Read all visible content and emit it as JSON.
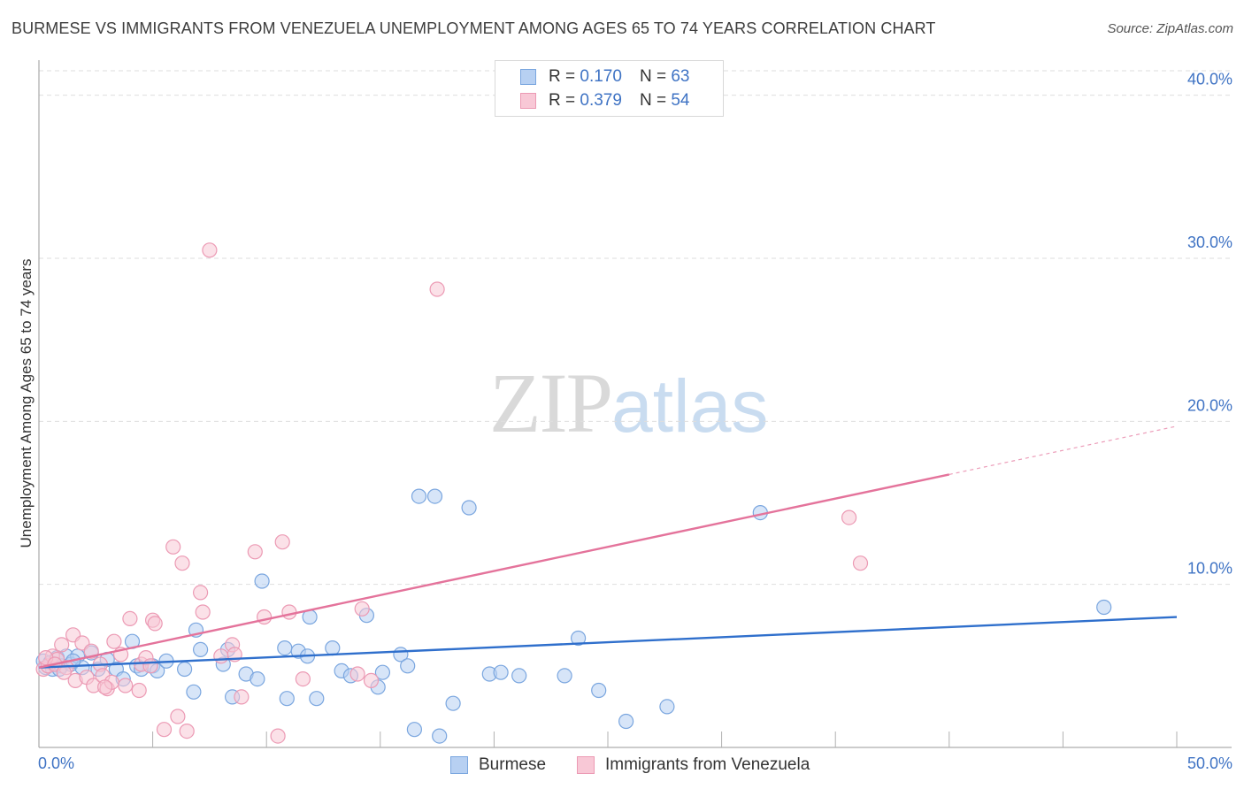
{
  "title": "BURMESE VS IMMIGRANTS FROM VENEZUELA UNEMPLOYMENT AMONG AGES 65 TO 74 YEARS CORRELATION CHART",
  "source": "Source: ZipAtlas.com",
  "watermark": {
    "zip": "ZIP",
    "atlas": "atlas"
  },
  "colors": {
    "blue_fill": "#b7d0f2",
    "blue_stroke": "#7aa6df",
    "blue_line": "#2f6fcc",
    "pink_fill": "#f8c8d6",
    "pink_stroke": "#ec9ab4",
    "pink_line": "#e4739b",
    "tick_label": "#3f73c4",
    "grid": "#dedede"
  },
  "legend": {
    "rows": [
      {
        "r_label": "R =",
        "r_value": "0.170",
        "n_label": "N =",
        "n_value": "63"
      },
      {
        "r_label": "R =",
        "r_value": "0.379",
        "n_label": "N =",
        "n_value": "54"
      }
    ]
  },
  "bottom_legend": {
    "burmese": "Burmese",
    "venezuela": "Immigrants from Venezuela"
  },
  "chart_data": {
    "type": "scatter",
    "title": "BURMESE VS IMMIGRANTS FROM VENEZUELA UNEMPLOYMENT AMONG AGES 65 TO 74 YEARS CORRELATION CHART",
    "xlabel": "",
    "ylabel": "Unemployment Among Ages 65 to 74 years",
    "xlim": [
      0,
      50
    ],
    "ylim": [
      0,
      41.5
    ],
    "x_tick_labels": [
      "0.0%",
      "50.0%"
    ],
    "y_ticks": [
      10,
      20,
      30,
      40
    ],
    "y_tick_labels": [
      "10.0%",
      "20.0%",
      "30.0%",
      "40.0%"
    ],
    "grid": true,
    "series": [
      {
        "name": "Burmese",
        "R": 0.17,
        "N": 63,
        "trend": {
          "x": [
            0,
            50
          ],
          "y": [
            4.9,
            8.0
          ],
          "dashed_from": null
        },
        "points": [
          [
            0.2,
            5.3
          ],
          [
            0.3,
            4.9
          ],
          [
            0.5,
            5.2
          ],
          [
            0.6,
            4.8
          ],
          [
            0.8,
            5.5
          ],
          [
            1.0,
            5.0
          ],
          [
            1.2,
            5.6
          ],
          [
            1.4,
            5.1
          ],
          [
            1.7,
            5.6
          ],
          [
            1.9,
            4.9
          ],
          [
            2.3,
            5.8
          ],
          [
            2.6,
            4.8
          ],
          [
            3.0,
            5.4
          ],
          [
            3.4,
            4.8
          ],
          [
            3.7,
            4.2
          ],
          [
            4.1,
            6.5
          ],
          [
            4.3,
            5.0
          ],
          [
            4.5,
            4.8
          ],
          [
            5.0,
            5.0
          ],
          [
            5.2,
            4.7
          ],
          [
            5.6,
            5.3
          ],
          [
            6.4,
            4.8
          ],
          [
            6.8,
            3.4
          ],
          [
            6.9,
            7.2
          ],
          [
            7.1,
            6.0
          ],
          [
            8.1,
            5.1
          ],
          [
            8.3,
            6.0
          ],
          [
            8.5,
            3.1
          ],
          [
            9.1,
            4.5
          ],
          [
            9.6,
            4.2
          ],
          [
            9.8,
            10.2
          ],
          [
            10.8,
            6.1
          ],
          [
            10.9,
            3.0
          ],
          [
            11.4,
            5.9
          ],
          [
            11.8,
            5.6
          ],
          [
            11.9,
            8.0
          ],
          [
            12.2,
            3.0
          ],
          [
            12.9,
            6.1
          ],
          [
            13.3,
            4.7
          ],
          [
            13.7,
            4.4
          ],
          [
            14.4,
            8.1
          ],
          [
            14.9,
            3.7
          ],
          [
            15.1,
            4.6
          ],
          [
            15.9,
            5.7
          ],
          [
            16.2,
            5.0
          ],
          [
            16.5,
            1.1
          ],
          [
            16.7,
            15.4
          ],
          [
            17.4,
            15.4
          ],
          [
            17.6,
            0.7
          ],
          [
            18.2,
            2.7
          ],
          [
            18.9,
            14.7
          ],
          [
            19.8,
            4.5
          ],
          [
            20.3,
            4.6
          ],
          [
            21.1,
            4.4
          ],
          [
            23.1,
            4.4
          ],
          [
            23.7,
            6.7
          ],
          [
            24.6,
            3.5
          ],
          [
            25.8,
            1.6
          ],
          [
            27.6,
            2.5
          ],
          [
            31.7,
            14.4
          ],
          [
            46.8,
            8.6
          ],
          [
            0.9,
            4.8
          ],
          [
            1.5,
            5.3
          ]
        ]
      },
      {
        "name": "Immigrants from Venezuela",
        "R": 0.379,
        "N": 54,
        "trend": {
          "x": [
            0,
            50
          ],
          "y": [
            4.9,
            19.7
          ],
          "dashed_from": 40
        },
        "points": [
          [
            0.2,
            4.8
          ],
          [
            0.4,
            5.0
          ],
          [
            0.6,
            5.6
          ],
          [
            0.8,
            5.4
          ],
          [
            1.0,
            6.3
          ],
          [
            1.2,
            4.9
          ],
          [
            1.5,
            6.9
          ],
          [
            1.6,
            4.1
          ],
          [
            1.9,
            6.4
          ],
          [
            2.1,
            4.3
          ],
          [
            2.3,
            5.9
          ],
          [
            2.4,
            3.8
          ],
          [
            2.7,
            5.1
          ],
          [
            2.8,
            4.4
          ],
          [
            3.0,
            3.6
          ],
          [
            3.2,
            4.0
          ],
          [
            3.3,
            6.5
          ],
          [
            3.6,
            5.7
          ],
          [
            3.8,
            3.8
          ],
          [
            4.0,
            7.9
          ],
          [
            4.4,
            3.5
          ],
          [
            4.5,
            5.1
          ],
          [
            4.7,
            5.5
          ],
          [
            5.0,
            7.8
          ],
          [
            5.1,
            7.6
          ],
          [
            5.5,
            1.1
          ],
          [
            5.9,
            12.3
          ],
          [
            6.1,
            1.9
          ],
          [
            6.3,
            11.3
          ],
          [
            6.5,
            1.0
          ],
          [
            7.1,
            9.5
          ],
          [
            7.2,
            8.3
          ],
          [
            7.5,
            30.5
          ],
          [
            8.5,
            6.3
          ],
          [
            8.6,
            5.7
          ],
          [
            8.9,
            3.1
          ],
          [
            9.5,
            12.0
          ],
          [
            9.9,
            8.0
          ],
          [
            10.5,
            0.7
          ],
          [
            10.7,
            12.6
          ],
          [
            11.0,
            8.3
          ],
          [
            11.6,
            4.2
          ],
          [
            14.0,
            4.5
          ],
          [
            14.2,
            8.5
          ],
          [
            14.6,
            4.1
          ],
          [
            17.5,
            28.1
          ],
          [
            35.6,
            14.1
          ],
          [
            36.1,
            11.3
          ],
          [
            0.3,
            5.5
          ],
          [
            0.7,
            5.1
          ],
          [
            1.1,
            4.6
          ],
          [
            2.9,
            3.7
          ],
          [
            4.9,
            5.0
          ],
          [
            8.0,
            5.6
          ]
        ]
      }
    ]
  }
}
